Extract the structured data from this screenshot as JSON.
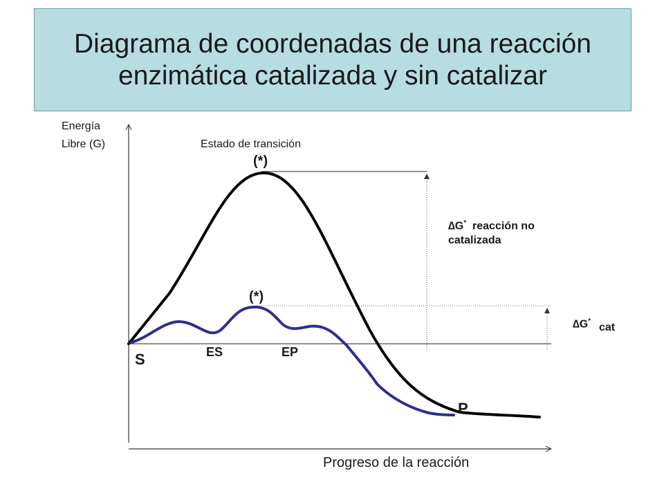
{
  "title": {
    "line1": "Diagrama de coordenadas de una reacción",
    "line2": "enzimática catalizada y sin catalizar"
  },
  "axes": {
    "y_label_line1": "Energía",
    "y_label_line2": "Libre (G)",
    "x_label": "Progreso de la reacción"
  },
  "annotations": {
    "transition_state": "Estado de transición",
    "ts_uncatalyzed": "(*)",
    "ts_catalyzed": "(*)",
    "dg_uncat_symbol": "∆G",
    "dg_uncat_sup": "*",
    "dg_uncat_text_line1": "reacción no",
    "dg_uncat_text_line2": "catalizada",
    "dg_cat_symbol": "∆G",
    "dg_cat_sup": "*",
    "dg_cat_sub": "cat",
    "substrate": "S",
    "es_complex": "ES",
    "ep_complex": "EP",
    "product": "P"
  },
  "colors": {
    "uncatalyzed_curve": "#000000",
    "catalyzed_curve": "#2e2e8f",
    "title_background": "#b7dde1"
  }
}
